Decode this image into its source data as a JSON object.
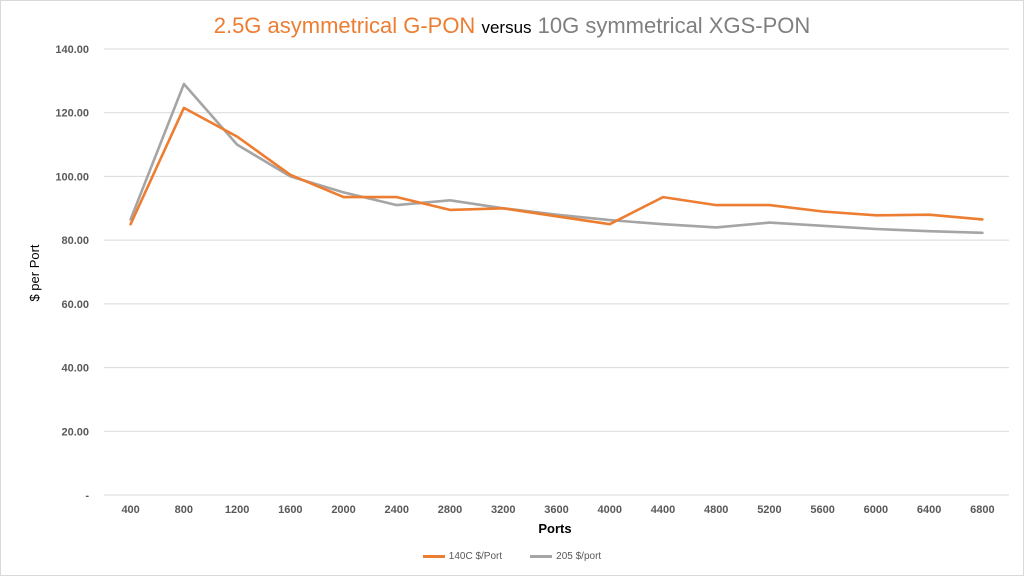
{
  "title": {
    "part1": "2.5G asymmetrical G-PON",
    "part2": "versus",
    "part3": "10G symmetrical XGS-PON"
  },
  "colors": {
    "series1": "#ED7D31",
    "series2": "#A5A5A5",
    "grid": "#D9D9D9"
  },
  "chart_data": {
    "type": "line",
    "title": "2.5G asymmetrical G-PON versus 10G symmetrical XGS-PON",
    "xlabel": "Ports",
    "ylabel": "$ per Port",
    "x": [
      "400",
      "800",
      "1200",
      "1600",
      "2000",
      "2400",
      "2800",
      "3200",
      "3600",
      "4000",
      "4400",
      "4800",
      "5200",
      "5600",
      "6000",
      "6400",
      "6800"
    ],
    "yticks": [
      "-",
      "20.00",
      "40.00",
      "60.00",
      "80.00",
      "100.00",
      "120.00",
      "140.00"
    ],
    "ylim": [
      0,
      140
    ],
    "grid": true,
    "legend_position": "bottom",
    "series": [
      {
        "name": "140C $/Port",
        "values": [
          85,
          121.5,
          112.5,
          100.5,
          93.5,
          93.5,
          89.5,
          90,
          87.5,
          85,
          93.5,
          91,
          91,
          89,
          87.8,
          88,
          86.5
        ]
      },
      {
        "name": "205 $/port",
        "values": [
          86.5,
          129,
          110,
          100,
          95,
          91,
          92.5,
          90,
          88,
          86.3,
          85,
          84,
          85.5,
          84.5,
          83.5,
          82.8,
          82.3
        ]
      }
    ]
  }
}
